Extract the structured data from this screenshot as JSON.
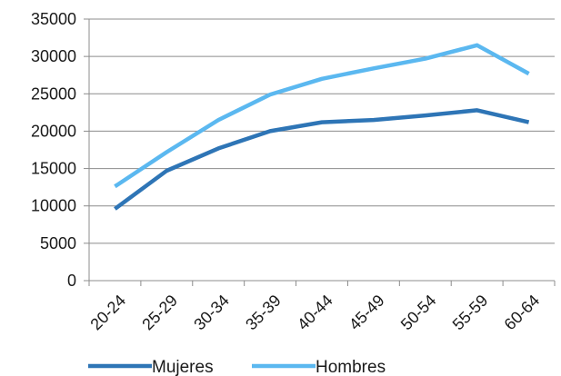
{
  "chart_data": {
    "type": "line",
    "title": "",
    "xlabel": "",
    "ylabel": "",
    "categories": [
      "20-24",
      "25-29",
      "30-34",
      "35-39",
      "40-44",
      "45-49",
      "50-54",
      "55-59",
      "60-64"
    ],
    "ylim": [
      0,
      35000
    ],
    "yticks": [
      0,
      5000,
      10000,
      15000,
      20000,
      25000,
      30000,
      35000
    ],
    "grid": true,
    "legend_position": "bottom",
    "series": [
      {
        "name": "Mujeres",
        "color": "#2E75B6",
        "values": [
          9600,
          14700,
          17700,
          20000,
          21200,
          21500,
          22100,
          22800,
          21200
        ]
      },
      {
        "name": "Hombres",
        "color": "#5BB8F0",
        "values": [
          12600,
          17200,
          21500,
          24900,
          27000,
          28400,
          29700,
          31500,
          27700
        ]
      }
    ]
  }
}
